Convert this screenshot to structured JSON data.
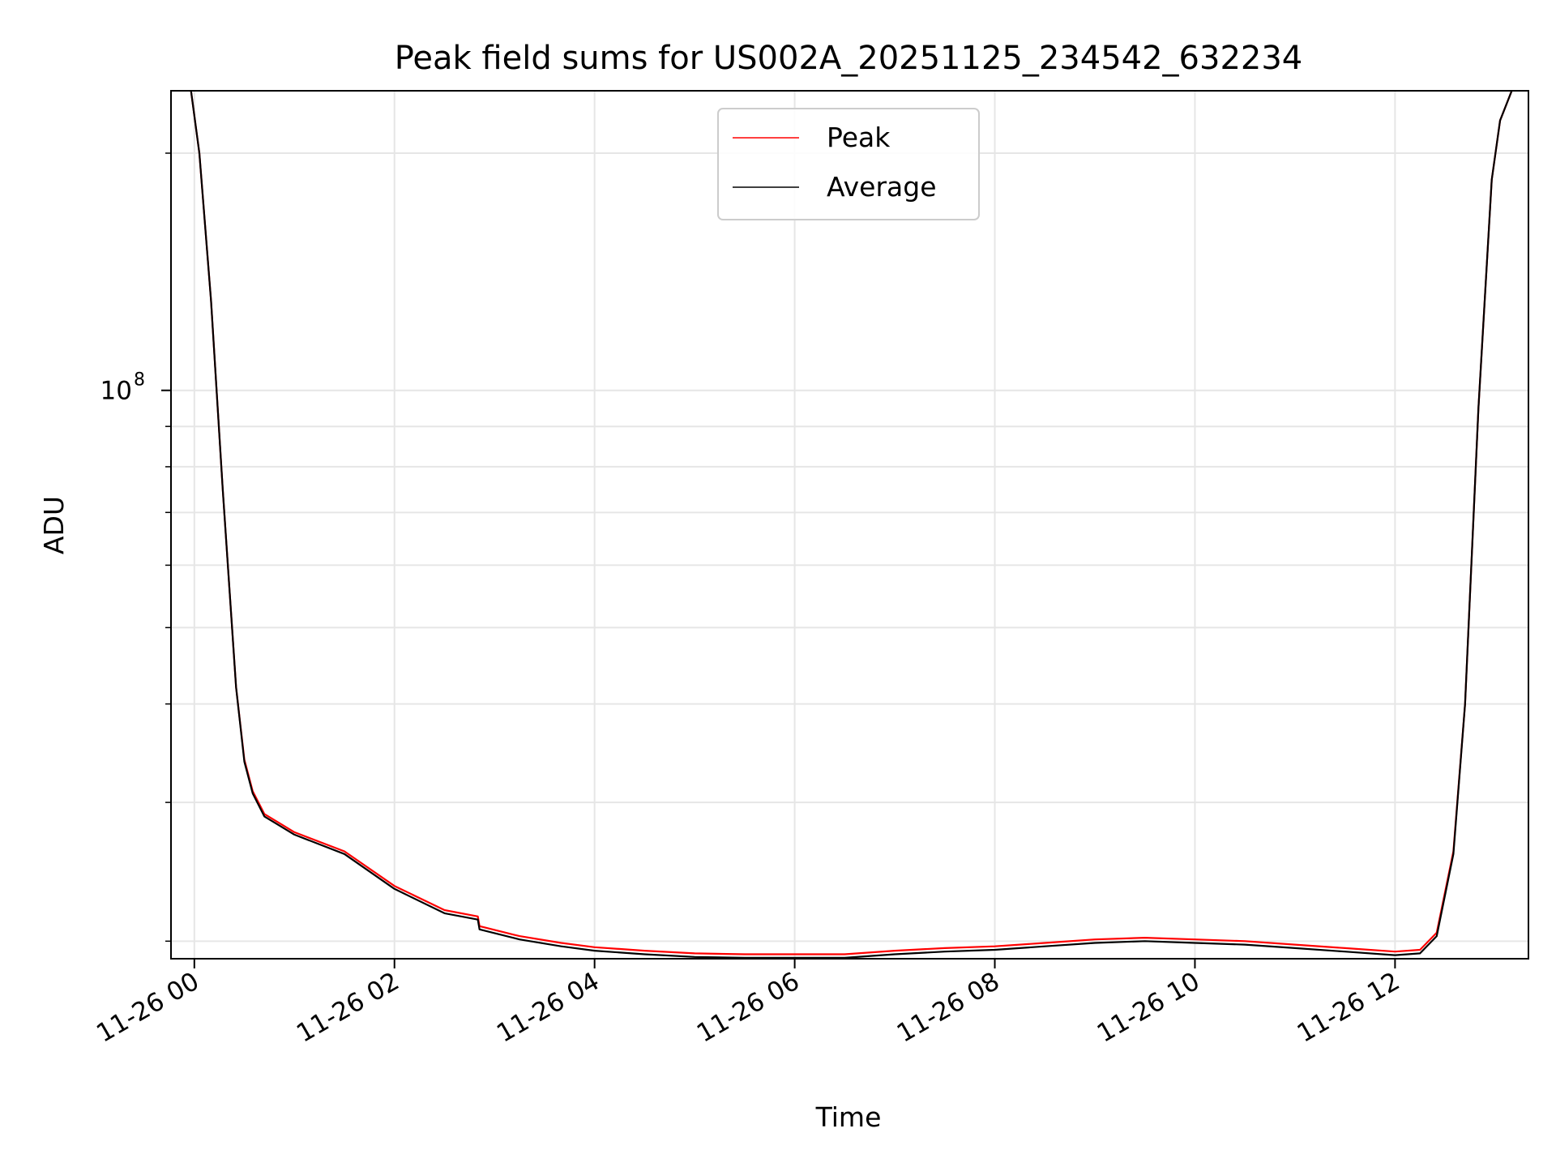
{
  "chart_data": {
    "type": "line",
    "title": "Peak field sums for US002A_20251125_234542_632234",
    "xlabel": "Time",
    "ylabel": "ADU",
    "x_type": "datetime",
    "xlim": [
      "2025-11-25T23:46:00",
      "2025-11-26T13:20:00"
    ],
    "x_ticks": [
      {
        "t": "2025-11-26T00:00:00",
        "label": "11-26 00"
      },
      {
        "t": "2025-11-26T02:00:00",
        "label": "11-26 02"
      },
      {
        "t": "2025-11-26T04:00:00",
        "label": "11-26 04"
      },
      {
        "t": "2025-11-26T06:00:00",
        "label": "11-26 06"
      },
      {
        "t": "2025-11-26T08:00:00",
        "label": "11-26 08"
      },
      {
        "t": "2025-11-26T10:00:00",
        "label": "11-26 10"
      },
      {
        "t": "2025-11-26T12:00:00",
        "label": "11-26 12"
      }
    ],
    "y_scale": "log",
    "ylim": [
      19000000,
      240000000
    ],
    "y_major_ticks": [
      {
        "value": 100000000,
        "base": "10",
        "exp": "8"
      }
    ],
    "y_minor_ticks": [
      20000000,
      30000000,
      40000000,
      50000000,
      60000000,
      70000000,
      80000000,
      90000000,
      200000000
    ],
    "grid": true,
    "legend": {
      "placement": "top-center"
    },
    "series": [
      {
        "name": "Peak",
        "color": "#ff0000",
        "x": [
          "2025-11-25T23:56:00",
          "2025-11-25T23:58:00",
          "2025-11-26T00:03:00",
          "2025-11-26T00:10:00",
          "2025-11-26T00:17:00",
          "2025-11-26T00:25:00",
          "2025-11-26T00:30:00",
          "2025-11-26T00:35:00",
          "2025-11-26T00:42:00",
          "2025-11-26T01:00:00",
          "2025-11-26T01:30:00",
          "2025-11-26T02:00:00",
          "2025-11-26T02:30:00",
          "2025-11-26T02:50:00",
          "2025-11-26T02:51:00",
          "2025-11-26T03:15:00",
          "2025-11-26T03:40:00",
          "2025-11-26T04:00:00",
          "2025-11-26T04:30:00",
          "2025-11-26T05:00:00",
          "2025-11-26T05:30:00",
          "2025-11-26T06:00:00",
          "2025-11-26T06:30:00",
          "2025-11-26T07:00:00",
          "2025-11-26T07:30:00",
          "2025-11-26T08:00:00",
          "2025-11-26T08:30:00",
          "2025-11-26T09:00:00",
          "2025-11-26T09:30:00",
          "2025-11-26T10:00:00",
          "2025-11-26T10:30:00",
          "2025-11-26T11:00:00",
          "2025-11-26T11:30:00",
          "2025-11-26T12:00:00",
          "2025-11-26T12:15:00",
          "2025-11-26T12:25:00",
          "2025-11-26T12:35:00",
          "2025-11-26T12:42:00",
          "2025-11-26T12:50:00",
          "2025-11-26T12:58:00",
          "2025-11-26T13:03:00",
          "2025-11-26T13:10:00",
          "2025-11-26T13:13:00"
        ],
        "y": [
          250000000,
          240000000,
          200000000,
          130000000,
          75000000,
          42000000,
          34000000,
          31000000,
          29000000,
          27500000,
          26000000,
          23500000,
          21900000,
          21500000,
          20900000,
          20300000,
          19900000,
          19650000,
          19450000,
          19300000,
          19250000,
          19250000,
          19250000,
          19450000,
          19600000,
          19700000,
          19900000,
          20100000,
          20200000,
          20100000,
          20000000,
          19800000,
          19600000,
          19400000,
          19500000,
          20500000,
          26000000,
          40000000,
          95000000,
          185000000,
          220000000,
          240000000,
          250000000
        ]
      },
      {
        "name": "Average",
        "color": "#000000",
        "x": [
          "2025-11-25T23:56:00",
          "2025-11-25T23:58:00",
          "2025-11-26T00:03:00",
          "2025-11-26T00:10:00",
          "2025-11-26T00:17:00",
          "2025-11-26T00:25:00",
          "2025-11-26T00:30:00",
          "2025-11-26T00:35:00",
          "2025-11-26T00:42:00",
          "2025-11-26T01:00:00",
          "2025-11-26T01:30:00",
          "2025-11-26T02:00:00",
          "2025-11-26T02:30:00",
          "2025-11-26T02:50:00",
          "2025-11-26T02:51:00",
          "2025-11-26T03:15:00",
          "2025-11-26T03:40:00",
          "2025-11-26T04:00:00",
          "2025-11-26T04:30:00",
          "2025-11-26T05:00:00",
          "2025-11-26T05:30:00",
          "2025-11-26T06:00:00",
          "2025-11-26T06:30:00",
          "2025-11-26T07:00:00",
          "2025-11-26T07:30:00",
          "2025-11-26T08:00:00",
          "2025-11-26T08:30:00",
          "2025-11-26T09:00:00",
          "2025-11-26T09:30:00",
          "2025-11-26T10:00:00",
          "2025-11-26T10:30:00",
          "2025-11-26T11:00:00",
          "2025-11-26T11:30:00",
          "2025-11-26T12:00:00",
          "2025-11-26T12:15:00",
          "2025-11-26T12:25:00",
          "2025-11-26T12:35:00",
          "2025-11-26T12:42:00",
          "2025-11-26T12:50:00",
          "2025-11-26T12:58:00",
          "2025-11-26T13:03:00",
          "2025-11-26T13:10:00",
          "2025-11-26T13:13:00"
        ],
        "y": [
          250000000,
          240000000,
          200000000,
          130000000,
          75000000,
          42000000,
          33800000,
          30800000,
          28800000,
          27300000,
          25800000,
          23300000,
          21700000,
          21300000,
          20700000,
          20100000,
          19700000,
          19450000,
          19250000,
          19100000,
          19050000,
          19050000,
          19050000,
          19250000,
          19400000,
          19500000,
          19700000,
          19900000,
          20000000,
          19900000,
          19800000,
          19600000,
          19400000,
          19200000,
          19300000,
          20300000,
          25800000,
          40000000,
          95000000,
          185000000,
          220000000,
          240000000,
          250000000
        ]
      }
    ]
  }
}
